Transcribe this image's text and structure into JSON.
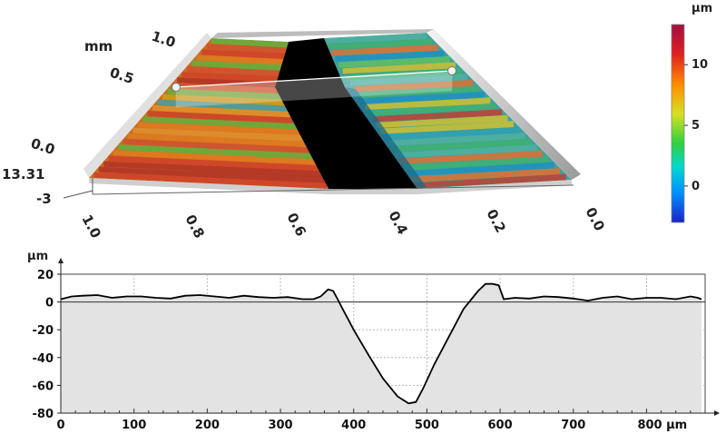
{
  "surface_view": {
    "unit_label": "mm",
    "y_axis_ticks": [
      "1.0",
      "0.5",
      "0.0"
    ],
    "x_axis_ticks": [
      "1.0",
      "0.8",
      "0.6",
      "0.4",
      "0.2",
      "0.0"
    ],
    "z_top_label": "13.31",
    "z_bottom_label": "-3",
    "colorbar": {
      "unit": "µm",
      "ticks": [
        "10",
        "5",
        "0"
      ],
      "tick_values": [
        10,
        5,
        0
      ],
      "range": [
        -3,
        13.31
      ],
      "colors": [
        "#2040ff",
        "#00a0ff",
        "#00e0c0",
        "#40e040",
        "#e0e020",
        "#ff8000",
        "#e02020",
        "#a01030"
      ]
    }
  },
  "chart_data": {
    "type": "line",
    "xlabel_unit": "µm",
    "ylabel": "µm",
    "xlim": [
      0,
      880
    ],
    "ylim": [
      -80,
      20
    ],
    "x_ticks": [
      0,
      100,
      200,
      300,
      400,
      500,
      600,
      700,
      800
    ],
    "x_tick_labels": [
      "0",
      "100",
      "200",
      "300",
      "400",
      "500",
      "600",
      "700",
      "800 µm"
    ],
    "y_ticks": [
      20,
      0,
      -20,
      -40,
      -60,
      -80
    ],
    "y_tick_labels": [
      "20",
      "0",
      "-20",
      "-40",
      "-60",
      "-80"
    ],
    "grid": true,
    "profile": {
      "x": [
        0,
        15,
        30,
        50,
        70,
        90,
        110,
        130,
        150,
        170,
        190,
        210,
        230,
        250,
        270,
        290,
        310,
        330,
        345,
        355,
        365,
        372,
        378,
        385,
        400,
        420,
        440,
        460,
        475,
        485,
        495,
        510,
        530,
        550,
        570,
        580,
        590,
        598,
        605,
        620,
        640,
        660,
        680,
        700,
        720,
        740,
        760,
        780,
        800,
        820,
        840,
        860,
        870,
        875
      ],
      "y": [
        2,
        4,
        4.5,
        5,
        3,
        4,
        4,
        3,
        2.5,
        4.5,
        5,
        4,
        3,
        4.5,
        3.5,
        3,
        3.5,
        2,
        2,
        4,
        9,
        8,
        2,
        -5,
        -20,
        -38,
        -55,
        -68,
        -73,
        -72,
        -62,
        -45,
        -25,
        -5,
        8,
        13,
        13,
        12,
        2,
        3,
        2.5,
        4,
        3.5,
        2.5,
        1,
        3,
        4,
        2,
        3,
        3,
        2,
        4,
        3,
        2
      ]
    }
  }
}
